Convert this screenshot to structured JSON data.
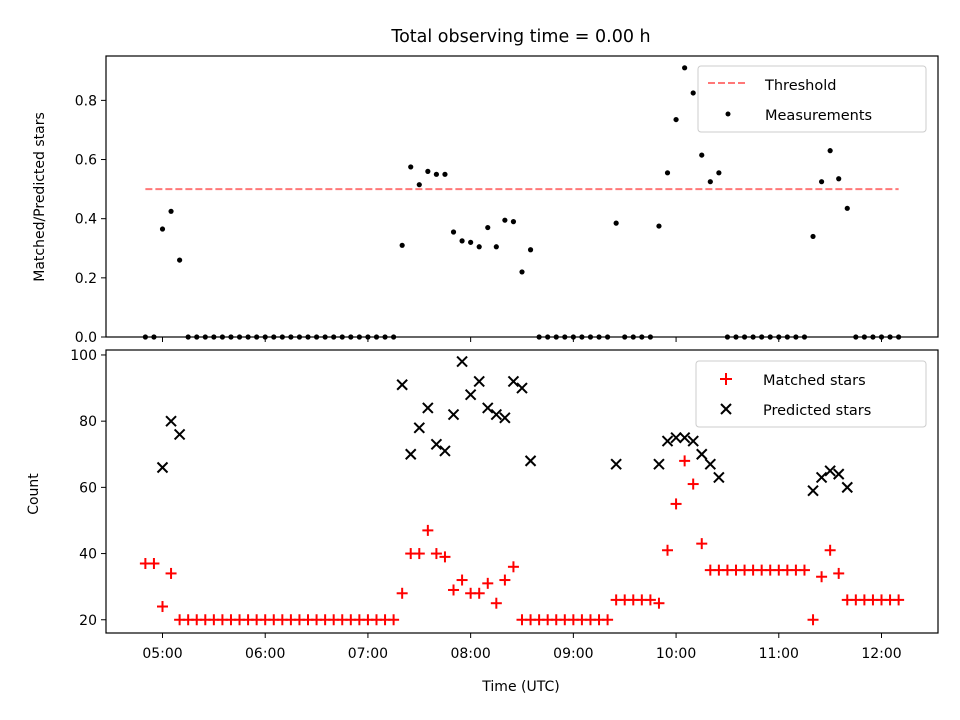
{
  "chart_data": [
    {
      "type": "scatter",
      "title": "Total observing time = 0.00 h",
      "xlabel": "",
      "ylabel": "Matched/Predicted stars",
      "xlim": [
        "04:27",
        "12:33"
      ],
      "ylim": [
        0,
        0.95
      ],
      "yticks": [
        0.0,
        0.2,
        0.4,
        0.6,
        0.8
      ],
      "ytick_labels": [
        "0.0",
        "0.2",
        "0.4",
        "0.6",
        "0.8"
      ],
      "legend_position": "top-right",
      "threshold": {
        "name": "Threshold",
        "value": 0.5,
        "x_range": [
          "04:50",
          "12:10"
        ],
        "color": "#ff7777",
        "style": "dashed"
      },
      "series": [
        {
          "name": "Measurements",
          "color": "#000000",
          "marker": "dot",
          "points": [
            [
              "04:50",
              0.0
            ],
            [
              "04:55",
              0.0
            ],
            [
              "05:00",
              0.365
            ],
            [
              "05:05",
              0.425
            ],
            [
              "05:10",
              0.26
            ],
            [
              "05:15",
              0.0
            ],
            [
              "05:20",
              0.0
            ],
            [
              "05:25",
              0.0
            ],
            [
              "05:30",
              0.0
            ],
            [
              "05:35",
              0.0
            ],
            [
              "05:40",
              0.0
            ],
            [
              "05:45",
              0.0
            ],
            [
              "05:50",
              0.0
            ],
            [
              "05:55",
              0.0
            ],
            [
              "06:00",
              0.0
            ],
            [
              "06:05",
              0.0
            ],
            [
              "06:10",
              0.0
            ],
            [
              "06:15",
              0.0
            ],
            [
              "06:20",
              0.0
            ],
            [
              "06:25",
              0.0
            ],
            [
              "06:30",
              0.0
            ],
            [
              "06:35",
              0.0
            ],
            [
              "06:40",
              0.0
            ],
            [
              "06:45",
              0.0
            ],
            [
              "06:50",
              0.0
            ],
            [
              "06:55",
              0.0
            ],
            [
              "07:00",
              0.0
            ],
            [
              "07:05",
              0.0
            ],
            [
              "07:10",
              0.0
            ],
            [
              "07:15",
              0.0
            ],
            [
              "07:20",
              0.31
            ],
            [
              "07:25",
              0.575
            ],
            [
              "07:30",
              0.515
            ],
            [
              "07:35",
              0.56
            ],
            [
              "07:40",
              0.55
            ],
            [
              "07:45",
              0.55
            ],
            [
              "07:50",
              0.355
            ],
            [
              "07:55",
              0.325
            ],
            [
              "08:00",
              0.32
            ],
            [
              "08:05",
              0.305
            ],
            [
              "08:10",
              0.37
            ],
            [
              "08:15",
              0.305
            ],
            [
              "08:20",
              0.395
            ],
            [
              "08:25",
              0.39
            ],
            [
              "08:30",
              0.22
            ],
            [
              "08:35",
              0.295
            ],
            [
              "08:40",
              0.0
            ],
            [
              "08:45",
              0.0
            ],
            [
              "08:50",
              0.0
            ],
            [
              "08:55",
              0.0
            ],
            [
              "09:00",
              0.0
            ],
            [
              "09:05",
              0.0
            ],
            [
              "09:10",
              0.0
            ],
            [
              "09:15",
              0.0
            ],
            [
              "09:20",
              0.0
            ],
            [
              "09:25",
              0.385
            ],
            [
              "09:30",
              0.0
            ],
            [
              "09:35",
              0.0
            ],
            [
              "09:40",
              0.0
            ],
            [
              "09:45",
              0.0
            ],
            [
              "09:50",
              0.375
            ],
            [
              "09:55",
              0.555
            ],
            [
              "10:00",
              0.735
            ],
            [
              "10:05",
              0.91
            ],
            [
              "10:10",
              0.825
            ],
            [
              "10:15",
              0.615
            ],
            [
              "10:20",
              0.525
            ],
            [
              "10:25",
              0.555
            ],
            [
              "10:30",
              0.0
            ],
            [
              "10:35",
              0.0
            ],
            [
              "10:40",
              0.0
            ],
            [
              "10:45",
              0.0
            ],
            [
              "10:50",
              0.0
            ],
            [
              "10:55",
              0.0
            ],
            [
              "11:00",
              0.0
            ],
            [
              "11:05",
              0.0
            ],
            [
              "11:10",
              0.0
            ],
            [
              "11:15",
              0.0
            ],
            [
              "11:20",
              0.34
            ],
            [
              "11:25",
              0.525
            ],
            [
              "11:30",
              0.63
            ],
            [
              "11:35",
              0.535
            ],
            [
              "11:40",
              0.435
            ],
            [
              "11:45",
              0.0
            ],
            [
              "11:50",
              0.0
            ],
            [
              "11:55",
              0.0
            ],
            [
              "12:00",
              0.0
            ],
            [
              "12:05",
              0.0
            ],
            [
              "12:10",
              0.0
            ]
          ]
        }
      ]
    },
    {
      "type": "scatter",
      "title": "",
      "xlabel": "Time (UTC)",
      "ylabel": "Count",
      "xlim": [
        "04:27",
        "12:33"
      ],
      "ylim": [
        16,
        101.5
      ],
      "xticks": [
        "05:00",
        "06:00",
        "07:00",
        "08:00",
        "09:00",
        "10:00",
        "11:00",
        "12:00"
      ],
      "xtick_labels": [
        "05:00",
        "06:00",
        "07:00",
        "08:00",
        "09:00",
        "10:00",
        "11:00",
        "12:00"
      ],
      "yticks": [
        20,
        40,
        60,
        80,
        100
      ],
      "ytick_labels": [
        "20",
        "40",
        "60",
        "80",
        "100"
      ],
      "legend_position": "top-right",
      "series": [
        {
          "name": "Matched stars",
          "color": "#ff0000",
          "marker": "plus",
          "points": [
            [
              "04:50",
              37
            ],
            [
              "04:55",
              37
            ],
            [
              "05:00",
              24
            ],
            [
              "05:05",
              34
            ],
            [
              "05:10",
              20
            ],
            [
              "05:15",
              20
            ],
            [
              "05:20",
              20
            ],
            [
              "05:25",
              20
            ],
            [
              "05:30",
              20
            ],
            [
              "05:35",
              20
            ],
            [
              "05:40",
              20
            ],
            [
              "05:45",
              20
            ],
            [
              "05:50",
              20
            ],
            [
              "05:55",
              20
            ],
            [
              "06:00",
              20
            ],
            [
              "06:05",
              20
            ],
            [
              "06:10",
              20
            ],
            [
              "06:15",
              20
            ],
            [
              "06:20",
              20
            ],
            [
              "06:25",
              20
            ],
            [
              "06:30",
              20
            ],
            [
              "06:35",
              20
            ],
            [
              "06:40",
              20
            ],
            [
              "06:45",
              20
            ],
            [
              "06:50",
              20
            ],
            [
              "06:55",
              20
            ],
            [
              "07:00",
              20
            ],
            [
              "07:05",
              20
            ],
            [
              "07:10",
              20
            ],
            [
              "07:15",
              20
            ],
            [
              "07:20",
              28
            ],
            [
              "07:25",
              40
            ],
            [
              "07:30",
              40
            ],
            [
              "07:35",
              47
            ],
            [
              "07:40",
              40
            ],
            [
              "07:45",
              39
            ],
            [
              "07:50",
              29
            ],
            [
              "07:55",
              32
            ],
            [
              "08:00",
              28
            ],
            [
              "08:05",
              28
            ],
            [
              "08:10",
              31
            ],
            [
              "08:15",
              25
            ],
            [
              "08:20",
              32
            ],
            [
              "08:25",
              36
            ],
            [
              "08:30",
              20
            ],
            [
              "08:35",
              20
            ],
            [
              "08:40",
              20
            ],
            [
              "08:45",
              20
            ],
            [
              "08:50",
              20
            ],
            [
              "08:55",
              20
            ],
            [
              "09:00",
              20
            ],
            [
              "09:05",
              20
            ],
            [
              "09:10",
              20
            ],
            [
              "09:15",
              20
            ],
            [
              "09:20",
              20
            ],
            [
              "09:25",
              26
            ],
            [
              "09:30",
              26
            ],
            [
              "09:35",
              26
            ],
            [
              "09:40",
              26
            ],
            [
              "09:45",
              26
            ],
            [
              "09:50",
              25
            ],
            [
              "09:55",
              41
            ],
            [
              "10:00",
              55
            ],
            [
              "10:05",
              68
            ],
            [
              "10:10",
              61
            ],
            [
              "10:15",
              43
            ],
            [
              "10:20",
              35
            ],
            [
              "10:25",
              35
            ],
            [
              "10:30",
              35
            ],
            [
              "10:35",
              35
            ],
            [
              "10:40",
              35
            ],
            [
              "10:45",
              35
            ],
            [
              "10:50",
              35
            ],
            [
              "10:55",
              35
            ],
            [
              "11:00",
              35
            ],
            [
              "11:05",
              35
            ],
            [
              "11:10",
              35
            ],
            [
              "11:15",
              35
            ],
            [
              "11:20",
              20
            ],
            [
              "11:25",
              33
            ],
            [
              "11:30",
              41
            ],
            [
              "11:35",
              34
            ],
            [
              "11:40",
              26
            ],
            [
              "11:45",
              26
            ],
            [
              "11:50",
              26
            ],
            [
              "11:55",
              26
            ],
            [
              "12:00",
              26
            ],
            [
              "12:05",
              26
            ],
            [
              "12:10",
              26
            ]
          ]
        },
        {
          "name": "Predicted stars",
          "color": "#000000",
          "marker": "x",
          "points": [
            [
              "05:00",
              66
            ],
            [
              "05:05",
              80
            ],
            [
              "05:10",
              76
            ],
            [
              "07:20",
              91
            ],
            [
              "07:25",
              70
            ],
            [
              "07:30",
              78
            ],
            [
              "07:35",
              84
            ],
            [
              "07:40",
              73
            ],
            [
              "07:45",
              71
            ],
            [
              "07:50",
              82
            ],
            [
              "07:55",
              98
            ],
            [
              "08:00",
              88
            ],
            [
              "08:05",
              92
            ],
            [
              "08:10",
              84
            ],
            [
              "08:15",
              82
            ],
            [
              "08:20",
              81
            ],
            [
              "08:25",
              92
            ],
            [
              "08:30",
              90
            ],
            [
              "08:35",
              68
            ],
            [
              "09:25",
              67
            ],
            [
              "09:50",
              67
            ],
            [
              "09:55",
              74
            ],
            [
              "10:00",
              75
            ],
            [
              "10:05",
              75
            ],
            [
              "10:10",
              74
            ],
            [
              "10:15",
              70
            ],
            [
              "10:20",
              67
            ],
            [
              "10:25",
              63
            ],
            [
              "11:20",
              59
            ],
            [
              "11:25",
              63
            ],
            [
              "11:30",
              65
            ],
            [
              "11:35",
              64
            ],
            [
              "11:40",
              60
            ]
          ]
        }
      ]
    }
  ]
}
